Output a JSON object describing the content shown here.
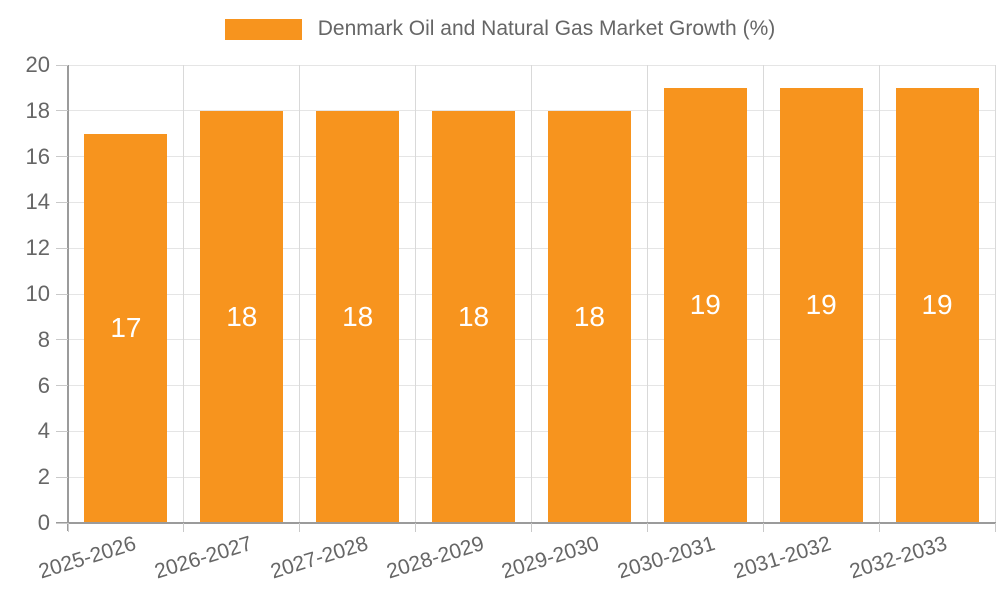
{
  "chart_data": {
    "type": "bar",
    "title": "Denmark Oil and Natural Gas Market Growth (%)",
    "categories": [
      "2025-2026",
      "2026-2027",
      "2027-2028",
      "2028-2029",
      "2029-2030",
      "2030-2031",
      "2031-2032",
      "2032-2033"
    ],
    "values": [
      17,
      18,
      18,
      18,
      18,
      19,
      19,
      19
    ],
    "value_labels": [
      "17",
      "18",
      "18",
      "18",
      "18",
      "19",
      "19",
      "19"
    ],
    "xlabel": "",
    "ylabel": "",
    "ylim": [
      0,
      20
    ],
    "ytick_step": 2,
    "ytick_labels": [
      "0",
      "2",
      "4",
      "6",
      "8",
      "10",
      "12",
      "14",
      "16",
      "18",
      "20"
    ],
    "grid": true,
    "legend_position": "top-center",
    "x_label_rotation_deg": -17,
    "colors": {
      "bar": "#F7941E",
      "value_label": "#FFFFFF",
      "axis_line": "#9B9B9B",
      "grid_h": "#E5E5E5",
      "grid_v": "#D9D9D9",
      "tick": "#C9C9C9",
      "text": "#666666"
    }
  }
}
